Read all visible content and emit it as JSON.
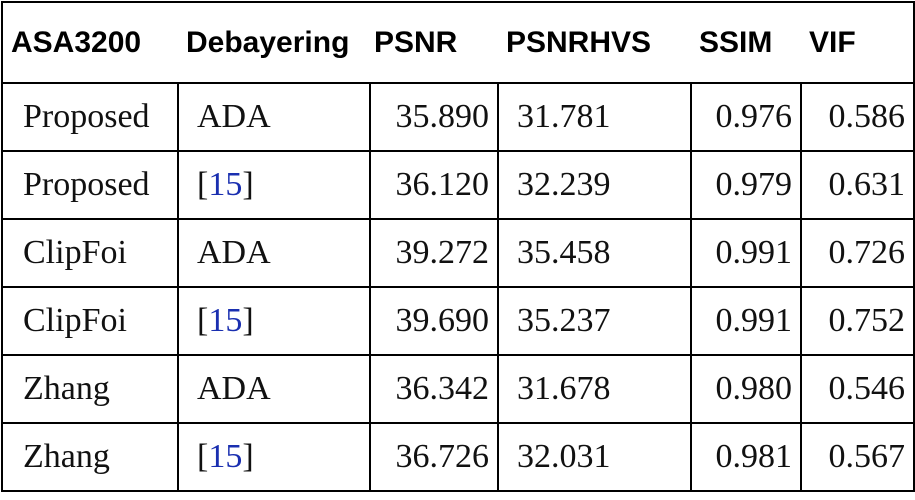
{
  "table": {
    "header": [
      "ASA3200",
      "Debayering",
      "PSNR",
      "PSNRHVS",
      "SSIM",
      "VIF"
    ],
    "rows": [
      [
        "Proposed",
        "ADA",
        "35.890",
        "31.781",
        "0.976",
        "0.586"
      ],
      [
        "Proposed",
        "[15]",
        "36.120",
        "32.239",
        "0.979",
        "0.631"
      ],
      [
        "ClipFoi",
        "ADA",
        "39.272",
        "35.458",
        "0.991",
        "0.726"
      ],
      [
        "ClipFoi",
        "[15]",
        "39.690",
        "35.237",
        "0.991",
        "0.752"
      ],
      [
        "Zhang",
        "ADA",
        "36.342",
        "31.678",
        "0.980",
        "0.546"
      ],
      [
        "Zhang",
        "[15]",
        "36.726",
        "32.031",
        "0.981",
        "0.567"
      ]
    ]
  }
}
